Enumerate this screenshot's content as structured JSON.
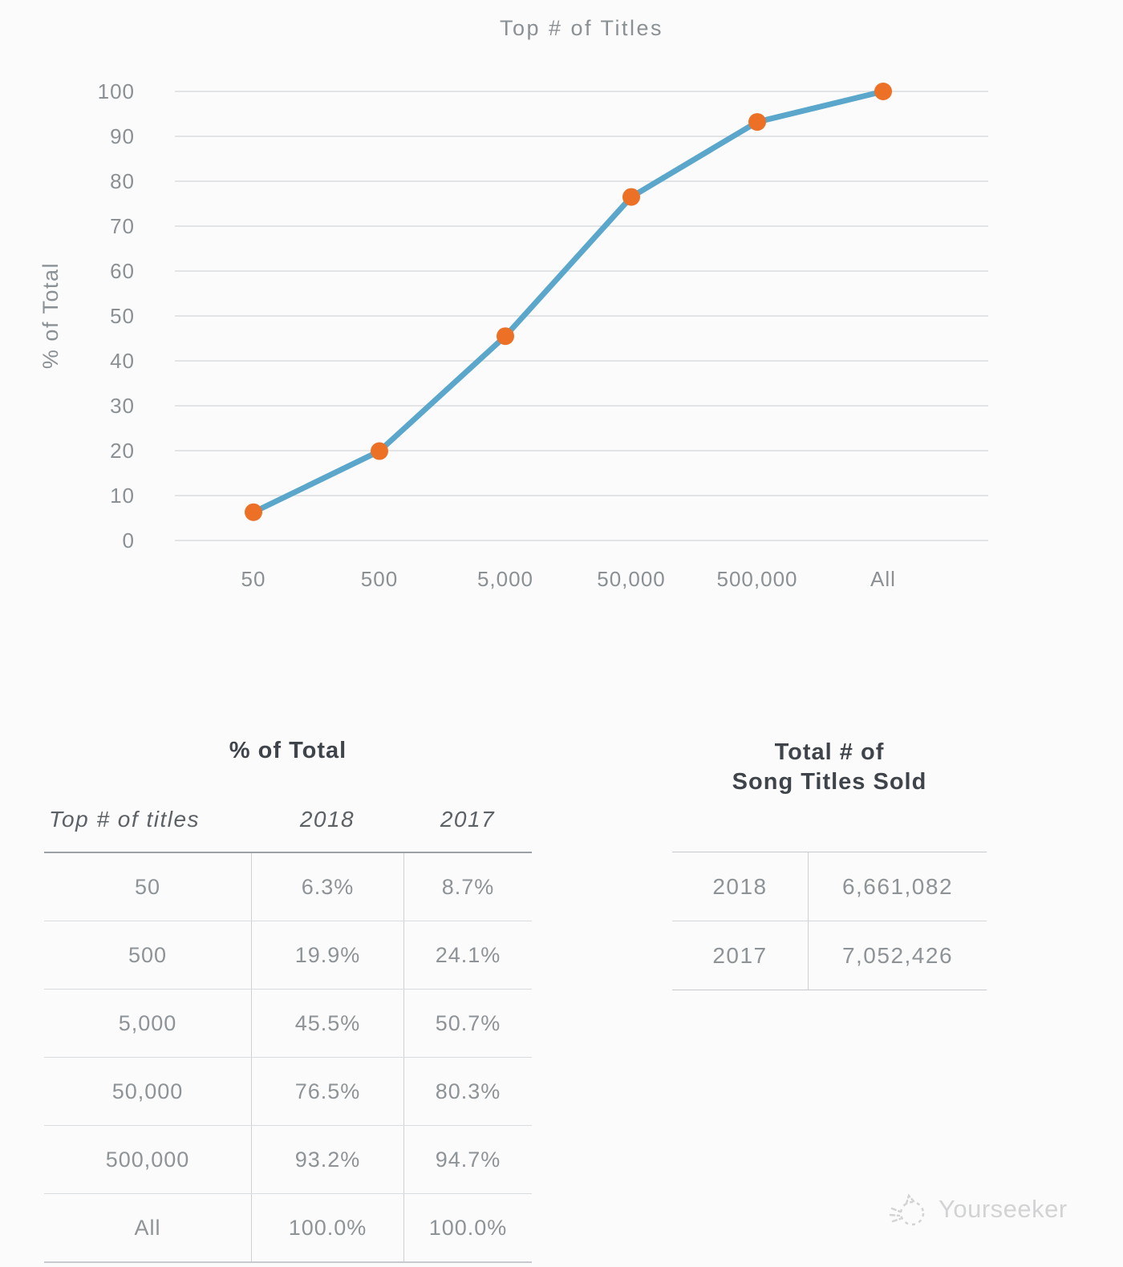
{
  "chart": {
    "title": "Top # of Titles",
    "ylabel": "% of Total",
    "line_color": "#5AA7CB",
    "marker_color": "#ED7027",
    "grid_color": "#D9DCDE",
    "axis_text_color": "#8A9094"
  },
  "chart_data": [
    {
      "type": "line",
      "title": "Top # of Titles",
      "xlabel": "Top # of titles",
      "ylabel": "% of Total",
      "categories": [
        "50",
        "500",
        "5,000",
        "50,000",
        "500,000",
        "All"
      ],
      "series": [
        {
          "name": "% of Total (2018)",
          "values": [
            6.3,
            19.9,
            45.5,
            76.5,
            93.2,
            100.0
          ]
        }
      ],
      "ylim": [
        0,
        100
      ],
      "ytick_step": 10,
      "yticks": [
        0,
        10,
        20,
        30,
        40,
        50,
        60,
        70,
        80,
        90,
        100
      ],
      "grid": "horizontal",
      "legend": "none",
      "marker": "circle"
    },
    {
      "type": "table",
      "title": "% of Total",
      "columns": [
        "Top # of titles",
        "2018",
        "2017"
      ],
      "rows": [
        [
          "50",
          "6.3%",
          "8.7%"
        ],
        [
          "500",
          "19.9%",
          "24.1%"
        ],
        [
          "5,000",
          "45.5%",
          "50.7%"
        ],
        [
          "50,000",
          "76.5%",
          "80.3%"
        ],
        [
          "500,000",
          "93.2%",
          "94.7%"
        ],
        [
          "All",
          "100.0%",
          "100.0%"
        ]
      ]
    },
    {
      "type": "table",
      "title": "Total # of Song Titles Sold",
      "columns": [
        "Year",
        "Total"
      ],
      "rows": [
        [
          "2018",
          "6,661,082"
        ],
        [
          "2017",
          "7,052,426"
        ]
      ]
    }
  ],
  "right_table": {
    "title_line1": "Total # of",
    "title_line2": "Song Titles Sold"
  },
  "watermark": {
    "text": "Yourseeker"
  }
}
